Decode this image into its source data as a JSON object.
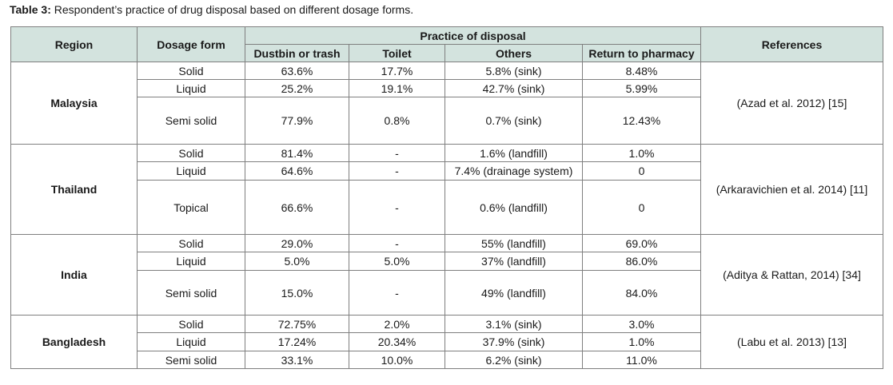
{
  "caption": {
    "label": "Table 3:",
    "text": " Respondent’s practice of drug disposal based on different dosage forms."
  },
  "header": {
    "region": "Region",
    "dosage_form": "Dosage form",
    "practice_group": "Practice of disposal",
    "dustbin": "Dustbin or trash",
    "toilet": "Toilet",
    "others": "Others",
    "return": "Return to pharmacy",
    "references": "References"
  },
  "groups": [
    {
      "region": "Malaysia",
      "reference": "(Azad et al. 2012) [15]",
      "rows": [
        {
          "form": "Solid",
          "dustbin": "63.6%",
          "toilet": "17.7%",
          "others": "5.8% (sink)",
          "return": "8.48%"
        },
        {
          "form": "Liquid",
          "dustbin": "25.2%",
          "toilet": "19.1%",
          "others": "42.7% (sink)",
          "return": "5.99%"
        },
        {
          "form": "Semi solid",
          "dustbin": "77.9%",
          "toilet": "0.8%",
          "others": "0.7% (sink)",
          "return": "12.43%"
        }
      ]
    },
    {
      "region": "Thailand",
      "reference": "(Arkaravichien et al. 2014) [11]",
      "rows": [
        {
          "form": "Solid",
          "dustbin": "81.4%",
          "toilet": "-",
          "others": "1.6% (landfill)",
          "return": "1.0%"
        },
        {
          "form": "Liquid",
          "dustbin": "64.6%",
          "toilet": "-",
          "others": "7.4% (drainage system)",
          "return": "0"
        },
        {
          "form": "Topical",
          "dustbin": "66.6%",
          "toilet": "-",
          "others": "0.6% (landfill)",
          "return": "0"
        }
      ]
    },
    {
      "region": "India",
      "reference": "(Aditya & Rattan, 2014) [34]",
      "rows": [
        {
          "form": "Solid",
          "dustbin": "29.0%",
          "toilet": "-",
          "others": "55% (landfill)",
          "return": "69.0%"
        },
        {
          "form": "Liquid",
          "dustbin": "5.0%",
          "toilet": "5.0%",
          "others": "37% (landfill)",
          "return": "86.0%"
        },
        {
          "form": "Semi solid",
          "dustbin": "15.0%",
          "toilet": "-",
          "others": "49%  (landfill)",
          "return": "84.0%"
        }
      ]
    },
    {
      "region": "Bangladesh",
      "reference": "(Labu et al. 2013) [13]",
      "rows": [
        {
          "form": "Solid",
          "dustbin": "72.75%",
          "toilet": "2.0%",
          "others": "3.1% (sink)",
          "return": "3.0%"
        },
        {
          "form": "Liquid",
          "dustbin": "17.24%",
          "toilet": "20.34%",
          "others": "37.9% (sink)",
          "return": "1.0%"
        },
        {
          "form": "Semi solid",
          "dustbin": "33.1%",
          "toilet": "10.0%",
          "others": "6.2% (sink)",
          "return": "11.0%"
        }
      ]
    }
  ]
}
